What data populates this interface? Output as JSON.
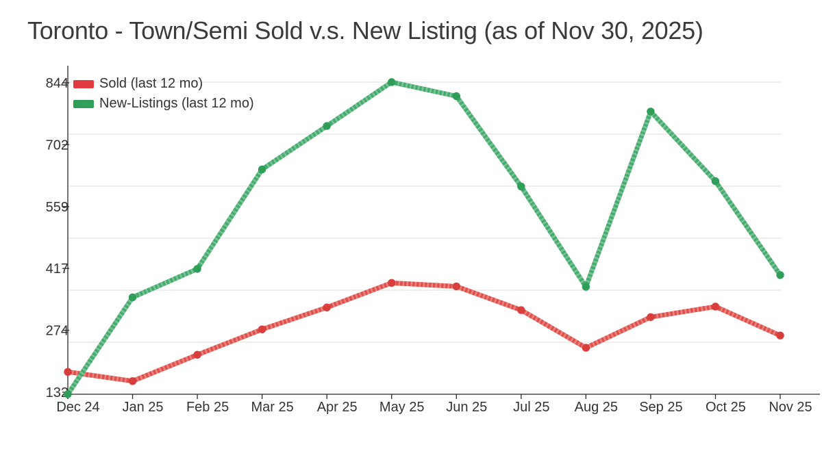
{
  "title": "Toronto - Town/Semi Sold v.s. New Listing (as of Nov 30, 2025)",
  "chart_data": {
    "type": "line",
    "title": "Toronto - Town/Semi Sold v.s. New Listing (as of Nov 30, 2025)",
    "categories": [
      "Dec 24",
      "Jan 25",
      "Feb 25",
      "Mar 25",
      "Apr 25",
      "May 25",
      "Jun 25",
      "Jul 25",
      "Aug 25",
      "Sep 25",
      "Oct 25",
      "Nov 25"
    ],
    "series": [
      {
        "name": "Sold (last 12 mo)",
        "slug": "sold",
        "color": "#e03c40",
        "line_color": "#e0514c",
        "marker_color": "#d83e3c",
        "values": [
          183,
          162,
          222,
          280,
          330,
          386,
          378,
          324,
          238,
          308,
          332,
          266
        ]
      },
      {
        "name": "New-Listings (last 12 mo)",
        "slug": "new-listings",
        "color": "#2f9e57",
        "line_color": "#45ab6e",
        "marker_color": "#2f9e58",
        "values": [
          132,
          353,
          418,
          645,
          744,
          844,
          812,
          606,
          377,
          777,
          618,
          404
        ]
      }
    ],
    "y_ticks": [
      "844",
      "702",
      "559",
      "417",
      "274",
      "132"
    ],
    "ylim": [
      132,
      844
    ],
    "xlabel": "",
    "ylabel": "",
    "grid": true,
    "gridline_count": 7,
    "legend_position": "top-left",
    "grid_color": "#e9e9e9",
    "axis_color": "#2a2a2a",
    "label_color": "#333333"
  }
}
